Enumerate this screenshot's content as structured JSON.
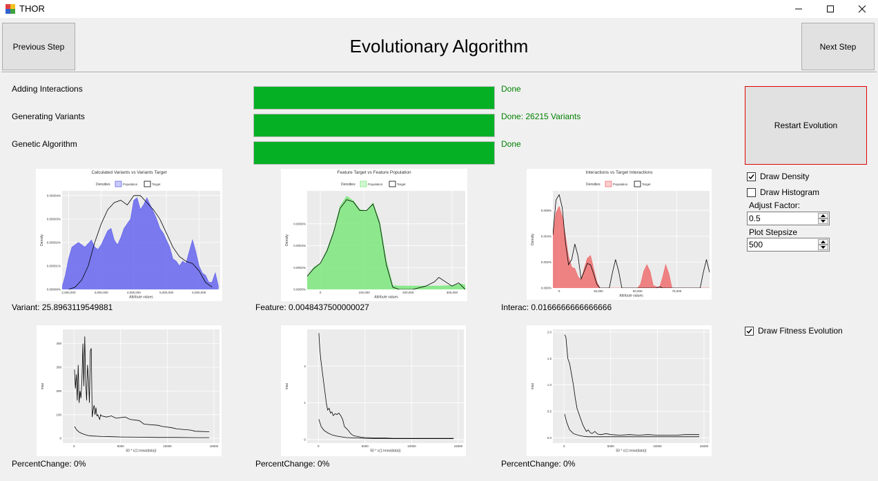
{
  "window": {
    "title": "THOR",
    "icon": "thor-app-icon"
  },
  "header": {
    "prev_label": "Previous Step",
    "title": "Evolutionary Algorithm",
    "next_label": "Next Step"
  },
  "steps": [
    {
      "label": "Adding Interactions",
      "progress": 1.0,
      "status": "Done"
    },
    {
      "label": "Generating Variants",
      "progress": 1.0,
      "status": "Done: 26215 Variants"
    },
    {
      "label": "Genetic Algorithm",
      "progress": 1.0,
      "status": "Done"
    }
  ],
  "controls": {
    "restart_label": "Restart Evolution",
    "draw_density": {
      "label": "Draw Density",
      "checked": true
    },
    "draw_histogram": {
      "label": "Draw Histogram",
      "checked": false
    },
    "adjust_factor": {
      "label": "Adjust Factor:",
      "value": "0.5"
    },
    "plot_stepsize": {
      "label": "Plot Stepsize",
      "value": "500"
    },
    "draw_fitness": {
      "label": "Draw Fitness Evolution",
      "checked": true
    }
  },
  "readouts": {
    "variant": "Variant: 25.8963119549881",
    "feature": "Feature: 0.0048437500000027",
    "interac": "Interac: 0.0166666666666666",
    "pc1": "PercentChange: 0%",
    "pc2": "PercentChange: 0%",
    "pc3": "PercentChange: 0%"
  },
  "chart_data": [
    {
      "type": "area",
      "title": "Calculated Variants vs Variants Target",
      "xlabel": "Attribute values",
      "ylabel": "Density",
      "legend_title": "Densities",
      "legend": [
        "Population",
        "Target"
      ],
      "legend_position": "top",
      "colors": {
        "Population": "#6666ee",
        "Target": "#000000"
      },
      "xlim": [
        1800000,
        6650000
      ],
      "ylim": [
        0,
        4.2e-05
      ],
      "xticks": [
        2000000,
        3000000,
        4000000,
        5000000,
        6000000
      ],
      "xtick_labels": [
        "2,000,000",
        "3,000,000",
        "4,000,000",
        "5,000,000",
        "6,000,000"
      ],
      "yticks": [
        0,
        1e-05,
        2e-05,
        3e-05,
        4e-05
      ],
      "ytick_labels": [
        "0.00000%",
        "0.00001%",
        "0.00002%",
        "0.00003%",
        "0.00004%"
      ],
      "series": [
        {
          "name": "Population",
          "fill": true,
          "x": [
            1800000,
            1900000,
            2000000,
            2100000,
            2300000,
            2500000,
            2700000,
            2800000,
            2900000,
            3000000,
            3100000,
            3200000,
            3300000,
            3400000,
            3500000,
            3600000,
            3700000,
            3800000,
            3900000,
            4000000,
            4100000,
            4200000,
            4300000,
            4400000,
            4500000,
            4600000,
            4700000,
            4800000,
            4900000,
            5000000,
            5100000,
            5200000,
            5300000,
            5400000,
            5500000,
            5600000,
            5700000,
            5800000,
            5900000,
            6000000,
            6100000,
            6200000,
            6300000,
            6400000,
            6500000,
            6600000
          ],
          "y": [
            1e-06,
            6e-06,
            1.3e-05,
            1.8e-05,
            2e-05,
            1.8e-05,
            2.1e-05,
            1.8e-05,
            1.7e-05,
            1.9e-05,
            2.2e-05,
            2.5e-05,
            2.6e-05,
            2.1e-05,
            1.9e-05,
            2.2e-05,
            2.6e-05,
            2.8e-05,
            3e-05,
            3.8e-05,
            3.9e-05,
            3.4e-05,
            3.6e-05,
            3.9e-05,
            3.6e-05,
            3.3e-05,
            3e-05,
            2.6e-05,
            2.4e-05,
            2.1e-05,
            1.8e-05,
            1.3e-05,
            1.2e-05,
            1e-05,
            1.2e-05,
            1.1e-05,
            1.6e-05,
            2.1e-05,
            1.6e-05,
            1e-05,
            7e-06,
            6e-06,
            3e-06,
            3e-06,
            7e-06,
            1e-06
          ]
        },
        {
          "name": "Target",
          "fill": false,
          "x": [
            2000000,
            2200000,
            2400000,
            2600000,
            2800000,
            3000000,
            3200000,
            3400000,
            3600000,
            3800000,
            4000000,
            4200000,
            4400000,
            4600000,
            4800000,
            5000000,
            5200000,
            5400000,
            5600000,
            5800000,
            6000000,
            6200000,
            6400000
          ],
          "y": [
            0.0,
            1e-06,
            4e-06,
            1e-05,
            2e-05,
            2.8e-05,
            3.4e-05,
            3.7e-05,
            3.8e-05,
            3.6e-05,
            4e-05,
            4e-05,
            3.7e-05,
            3.4e-05,
            3e-05,
            2.4e-05,
            1.8e-05,
            1.4e-05,
            1.2e-05,
            1.1e-05,
            8e-06,
            3e-06,
            1e-06
          ]
        }
      ]
    },
    {
      "type": "area",
      "title": "Feature Target vs Feature Population",
      "xlabel": "Attribute values",
      "ylabel": "Density",
      "legend_title": "Densities",
      "legend": [
        "Population",
        "Target"
      ],
      "legend_position": "top",
      "colors": {
        "Population": "#7de87d",
        "Target": "#000000"
      },
      "xlim": [
        -30000,
        330000
      ],
      "ylim": [
        0,
        0.0009
      ],
      "xticks": [
        0,
        100000,
        200000,
        300000
      ],
      "xtick_labels": [
        "0",
        "100,000",
        "200,000",
        "300,000"
      ],
      "yticks": [
        0,
        0.0002,
        0.0004,
        0.0006
      ],
      "ytick_labels": [
        "0.0000%",
        "0.0002%",
        "0.0004%",
        "0.0006%"
      ],
      "series": [
        {
          "name": "Population",
          "fill": true,
          "x": [
            -30000,
            -15000,
            0,
            15000,
            30000,
            45000,
            60000,
            75000,
            90000,
            105000,
            120000,
            135000,
            150000,
            165000,
            180000,
            210000,
            240000,
            270000,
            300000,
            320000,
            330000
          ],
          "y": [
            0.00012,
            0.0002,
            0.00024,
            0.00036,
            0.00053,
            0.00076,
            0.00085,
            0.00081,
            0.00073,
            0.00072,
            0.00079,
            0.00062,
            0.00027,
            3.5e-05,
            3e-05,
            3e-05,
            3e-05,
            3e-05,
            3.5e-05,
            5e-05,
            4e-05
          ]
        },
        {
          "name": "Target",
          "fill": false,
          "x": [
            -30000,
            -15000,
            0,
            15000,
            30000,
            45000,
            60000,
            75000,
            90000,
            105000,
            120000,
            135000,
            150000,
            165000,
            180000,
            210000,
            240000,
            260000,
            270000,
            285000,
            300000,
            315000,
            330000
          ],
          "y": [
            0.00012,
            0.00019,
            0.00024,
            0.00035,
            0.00052,
            0.00074,
            0.00082,
            0.0008,
            0.00072,
            0.00072,
            0.00078,
            0.0006,
            0.00023,
            2e-05,
            0.0,
            0.0,
            3e-05,
            7e-05,
            0.00011,
            7e-05,
            3e-05,
            6e-05,
            0.0
          ]
        }
      ]
    },
    {
      "type": "area",
      "title": "Interactions vs Target Interactions",
      "xlabel": "Attribute values",
      "ylabel": "Density",
      "legend_title": "Densities",
      "legend": [
        "Population",
        "Target"
      ],
      "legend_position": "top",
      "colors": {
        "Population": "#ee7070",
        "Target": "#000000"
      },
      "xlim": [
        -4000,
        96000
      ],
      "ylim": [
        0,
        7.5e-05
      ],
      "xticks": [
        0,
        25000,
        50000,
        75000
      ],
      "xtick_labels": [
        "0",
        "25,000",
        "50,000",
        "75,000"
      ],
      "yticks": [
        0,
        2e-05,
        4e-05,
        6e-05
      ],
      "ytick_labels": [
        "0.000%",
        "0.002%",
        "0.004%",
        "0.006%"
      ],
      "series": [
        {
          "name": "Population",
          "fill": true,
          "x": [
            -4000,
            -2000,
            0,
            2000,
            4000,
            6000,
            8000,
            10000,
            12000,
            14000,
            16000,
            18000,
            20000,
            22000,
            24000,
            26000,
            50000,
            52000,
            54000,
            56000,
            58000,
            60000,
            64000,
            66000,
            68000,
            70000,
            72000,
            96000
          ],
          "y": [
            4e-05,
            5.8e-05,
            6.3e-05,
            5.5e-05,
            4e-05,
            2.4e-05,
            1.6e-05,
            1.5e-05,
            9e-06,
            6e-06,
            1.5e-05,
            2.3e-05,
            2.5e-05,
            1.5e-05,
            5e-06,
            0.0,
            0.0,
            3e-06,
            1.3e-05,
            1.8e-05,
            1.3e-05,
            2e-06,
            0.0,
            8e-06,
            1.8e-05,
            1.1e-05,
            0.0,
            0.0
          ]
        },
        {
          "name": "Target",
          "fill": false,
          "x": [
            -4000,
            -2000,
            0,
            2000,
            4000,
            6000,
            8000,
            10000,
            12000,
            14000,
            16000,
            18000,
            20000,
            22000,
            24000,
            26000,
            32000,
            34000,
            36000,
            38000,
            40000,
            62000,
            64000,
            66000,
            68000,
            70000,
            90000,
            92000,
            94000,
            96000
          ],
          "y": [
            4.1e-05,
            6.8e-05,
            7.2e-05,
            6.2e-05,
            3.5e-05,
            1.8e-05,
            2.2e-05,
            3.4e-05,
            2.5e-05,
            7e-06,
            1.3e-05,
            1.9e-05,
            1.8e-05,
            1.1e-05,
            3e-06,
            0.0,
            0.0,
            1.2e-05,
            2.2e-05,
            1.3e-05,
            0.0,
            0.0,
            1e-06,
            0.0,
            0.0,
            0.0,
            0.0,
            1.2e-05,
            2.2e-05,
            1.2e-05
          ]
        }
      ]
    },
    {
      "type": "line",
      "title": "",
      "xlabel": "50 * c(1:nrow(data))",
      "ylabel": "max",
      "xlim": [
        -1200,
        15600
      ],
      "ylim": [
        -20,
        460
      ],
      "xticks": [
        0,
        5000,
        10000,
        15000
      ],
      "xtick_labels": [
        "0",
        "5000",
        "10000",
        "15000"
      ],
      "yticks": [
        0,
        100,
        200,
        300,
        400
      ],
      "ytick_labels": [
        "0",
        "100",
        "200",
        "300",
        "400"
      ],
      "series": [
        {
          "color": "#000000",
          "x": [
            50,
            150,
            250,
            350,
            450,
            550,
            650,
            750,
            850,
            950,
            1050,
            1150,
            1250,
            1350,
            1450,
            1550,
            1650,
            1750,
            1850,
            1950,
            2050,
            2150,
            2250,
            2350,
            2450,
            2550,
            2650,
            2750,
            2850,
            2950,
            3500,
            4000,
            4500,
            5500,
            6000,
            7000,
            7500,
            9000,
            9500,
            10500,
            11000,
            12500,
            13000,
            14500
          ],
          "y": [
            290,
            210,
            270,
            160,
            310,
            150,
            200,
            170,
            250,
            400,
            220,
            430,
            240,
            160,
            310,
            250,
            150,
            370,
            380,
            90,
            120,
            140,
            100,
            130,
            95,
            100,
            90,
            80,
            100,
            95,
            90,
            95,
            85,
            90,
            80,
            75,
            60,
            55,
            50,
            45,
            40,
            35,
            30,
            28
          ]
        },
        {
          "color": "#000000",
          "x": [
            50,
            300,
            600,
            1000,
            1500,
            2000,
            2500,
            3000,
            4000,
            5000,
            7000,
            9000,
            11000,
            13000,
            14500
          ],
          "y": [
            50,
            35,
            25,
            18,
            12,
            10,
            9,
            8,
            7,
            6,
            5,
            4,
            4,
            3,
            3
          ]
        }
      ]
    },
    {
      "type": "line",
      "title": "",
      "xlabel": "50 * c(1:nrow(data))",
      "ylabel": "max",
      "xlim": [
        -1200,
        15600
      ],
      "ylim": [
        -0.1,
        3.0
      ],
      "xticks": [
        0,
        5000,
        10000,
        15000
      ],
      "xtick_labels": [
        "0",
        "5000",
        "10000",
        "15000"
      ],
      "yticks": [
        0,
        1,
        2
      ],
      "ytick_labels": [
        "0",
        "1",
        "2"
      ],
      "series": [
        {
          "color": "#000000",
          "x": [
            50,
            150,
            250,
            400,
            550,
            700,
            850,
            1000,
            1150,
            1300,
            1450,
            1600,
            1800,
            2000,
            2200,
            2400,
            2600,
            2800,
            3000,
            3200,
            3500,
            3800,
            4200,
            4600,
            5000,
            6000,
            7000,
            8000,
            9000,
            10000,
            11000,
            12000,
            13000,
            14500
          ],
          "y": [
            2.9,
            2.5,
            2.2,
            1.9,
            1.6,
            1.3,
            1.0,
            0.8,
            0.85,
            0.72,
            0.75,
            0.65,
            0.7,
            0.68,
            0.72,
            0.65,
            0.55,
            0.35,
            0.3,
            0.25,
            0.15,
            0.1,
            0.08,
            0.06,
            0.05,
            0.04,
            0.04,
            0.03,
            0.03,
            0.03,
            0.03,
            0.03,
            0.03,
            0.03
          ]
        },
        {
          "color": "#000000",
          "x": [
            50,
            300,
            600,
            1000,
            1500,
            2000,
            2500,
            3000,
            4000,
            5000,
            7000,
            9000,
            11000,
            13000,
            14500
          ],
          "y": [
            0.55,
            0.35,
            0.25,
            0.18,
            0.12,
            0.09,
            0.07,
            0.05,
            0.04,
            0.03,
            0.02,
            0.02,
            0.02,
            0.02,
            0.02
          ]
        }
      ]
    },
    {
      "type": "line",
      "title": "",
      "xlabel": "50 * c(1:nrow(data))",
      "ylabel": "max",
      "xlim": [
        -1200,
        15600
      ],
      "ylim": [
        -0.1,
        2.05
      ],
      "xticks": [
        0,
        5000,
        10000,
        15000
      ],
      "xtick_labels": [
        "0",
        "5000",
        "10000",
        "15000"
      ],
      "yticks": [
        0,
        0.5,
        1.0,
        1.5,
        2.0
      ],
      "ytick_labels": [
        "0.0",
        "0.5",
        "1.0",
        "1.5",
        "2.0"
      ],
      "series": [
        {
          "color": "#000000",
          "x": [
            50,
            200,
            400,
            600,
            800,
            1000,
            1200,
            1400,
            1600,
            1800,
            2000,
            2200,
            2400,
            2600,
            2800,
            3000,
            3300,
            3600,
            4000,
            4500,
            5000,
            6000,
            7000,
            8000,
            9000,
            10000,
            11000,
            12000,
            13000,
            14500
          ],
          "y": [
            1.95,
            1.9,
            1.5,
            1.4,
            1.2,
            1.0,
            0.75,
            0.55,
            0.45,
            0.35,
            0.25,
            0.18,
            0.12,
            0.15,
            0.1,
            0.08,
            0.12,
            0.07,
            0.06,
            0.08,
            0.06,
            0.05,
            0.06,
            0.05,
            0.06,
            0.05,
            0.05,
            0.05,
            0.06,
            0.06
          ]
        },
        {
          "color": "#000000",
          "x": [
            50,
            300,
            600,
            1000,
            1500,
            2000,
            2500,
            3000,
            4000,
            5000,
            7000,
            9000,
            11000,
            13000,
            14500
          ],
          "y": [
            0.45,
            0.28,
            0.15,
            0.08,
            0.05,
            0.03,
            0.02,
            0.02,
            0.02,
            0.02,
            0.02,
            0.02,
            0.02,
            0.02,
            0.02
          ]
        }
      ]
    }
  ]
}
